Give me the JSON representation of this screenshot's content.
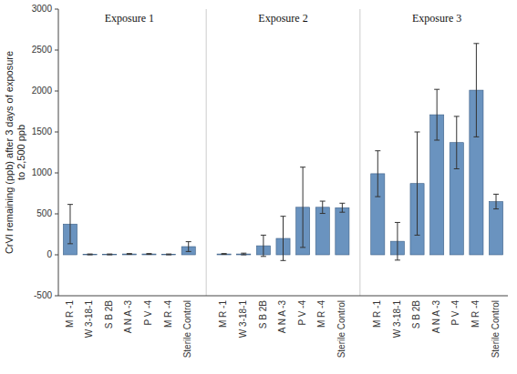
{
  "chart_data": {
    "type": "bar",
    "ylabel": "CrVI remaining (ppb) after 3 days of exposure\nto 2,500 ppb",
    "categories": [
      "M R -1",
      "W 3-18-1",
      "S B 2B",
      "A N A -3",
      "P V -4",
      "M R -4",
      "Sterile Control"
    ],
    "series": [
      {
        "name": "Exposure 1",
        "values": [
          375,
          5,
          5,
          10,
          10,
          5,
          100
        ],
        "errors": [
          240,
          5,
          5,
          5,
          5,
          5,
          60
        ]
      },
      {
        "name": "Exposure 2",
        "values": [
          10,
          10,
          110,
          200,
          580,
          580,
          575
        ],
        "errors": [
          5,
          10,
          130,
          270,
          490,
          75,
          55
        ]
      },
      {
        "name": "Exposure 3",
        "values": [
          990,
          165,
          870,
          1710,
          1370,
          2010,
          650
        ],
        "errors": [
          280,
          230,
          630,
          310,
          320,
          570,
          90
        ]
      }
    ],
    "color": "#6a93bf",
    "ylim": [
      -500,
      3000
    ],
    "yticks": [
      -500,
      0,
      500,
      1000,
      1500,
      2000,
      2500,
      3000
    ],
    "grid": false
  }
}
